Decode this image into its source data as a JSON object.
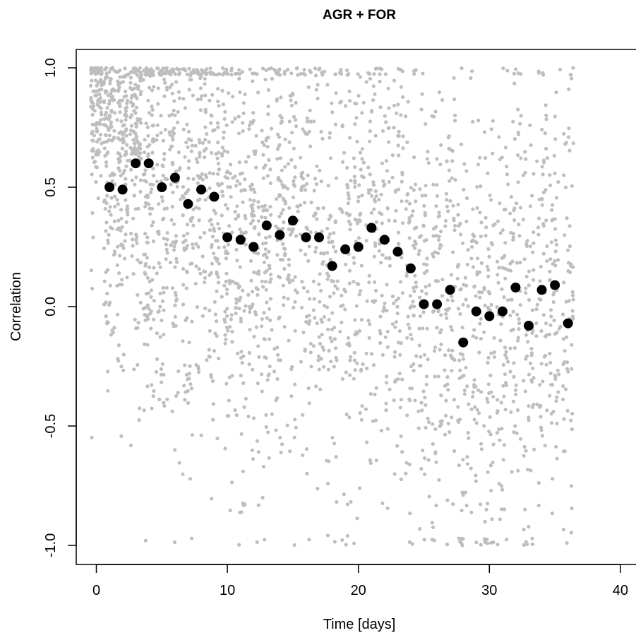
{
  "chart_data": {
    "type": "scatter",
    "title": "AGR + FOR",
    "xlabel": "Time [days]",
    "ylabel": "Correlation",
    "xlim": [
      0,
      40
    ],
    "ylim": [
      -1,
      1
    ],
    "x_ticks": [
      0,
      10,
      20,
      30,
      40
    ],
    "x_tick_labels": [
      "0",
      "10",
      "20",
      "30",
      "40"
    ],
    "y_ticks": [
      -1,
      -0.5,
      0,
      0.5,
      1
    ],
    "y_tick_labels": [
      "-1.0",
      "-0.5",
      "0.0",
      "0.5",
      "1.0"
    ],
    "grid": false,
    "colors": {
      "raw_points": "#bebebe",
      "mean_points": "#000000",
      "axes": "#000000"
    },
    "series": [
      {
        "role": "daily-mean",
        "x": [
          1,
          2,
          3,
          4,
          5,
          6,
          7,
          8,
          9,
          10,
          11,
          12,
          13,
          14,
          15,
          16,
          17,
          18,
          19,
          20,
          21,
          22,
          23,
          24,
          25,
          26,
          27,
          28,
          29,
          30,
          31,
          32,
          33,
          34,
          35,
          36
        ],
        "y": [
          0.5,
          0.49,
          0.6,
          0.6,
          0.5,
          0.54,
          0.43,
          0.49,
          0.46,
          0.29,
          0.28,
          0.25,
          0.34,
          0.3,
          0.36,
          0.29,
          0.29,
          0.17,
          0.24,
          0.25,
          0.33,
          0.28,
          0.23,
          0.16,
          0.01,
          0.01,
          0.07,
          -0.15,
          -0.02,
          -0.04,
          -0.02,
          0.08,
          -0.08,
          0.07,
          0.09,
          -0.07
        ]
      }
    ]
  }
}
